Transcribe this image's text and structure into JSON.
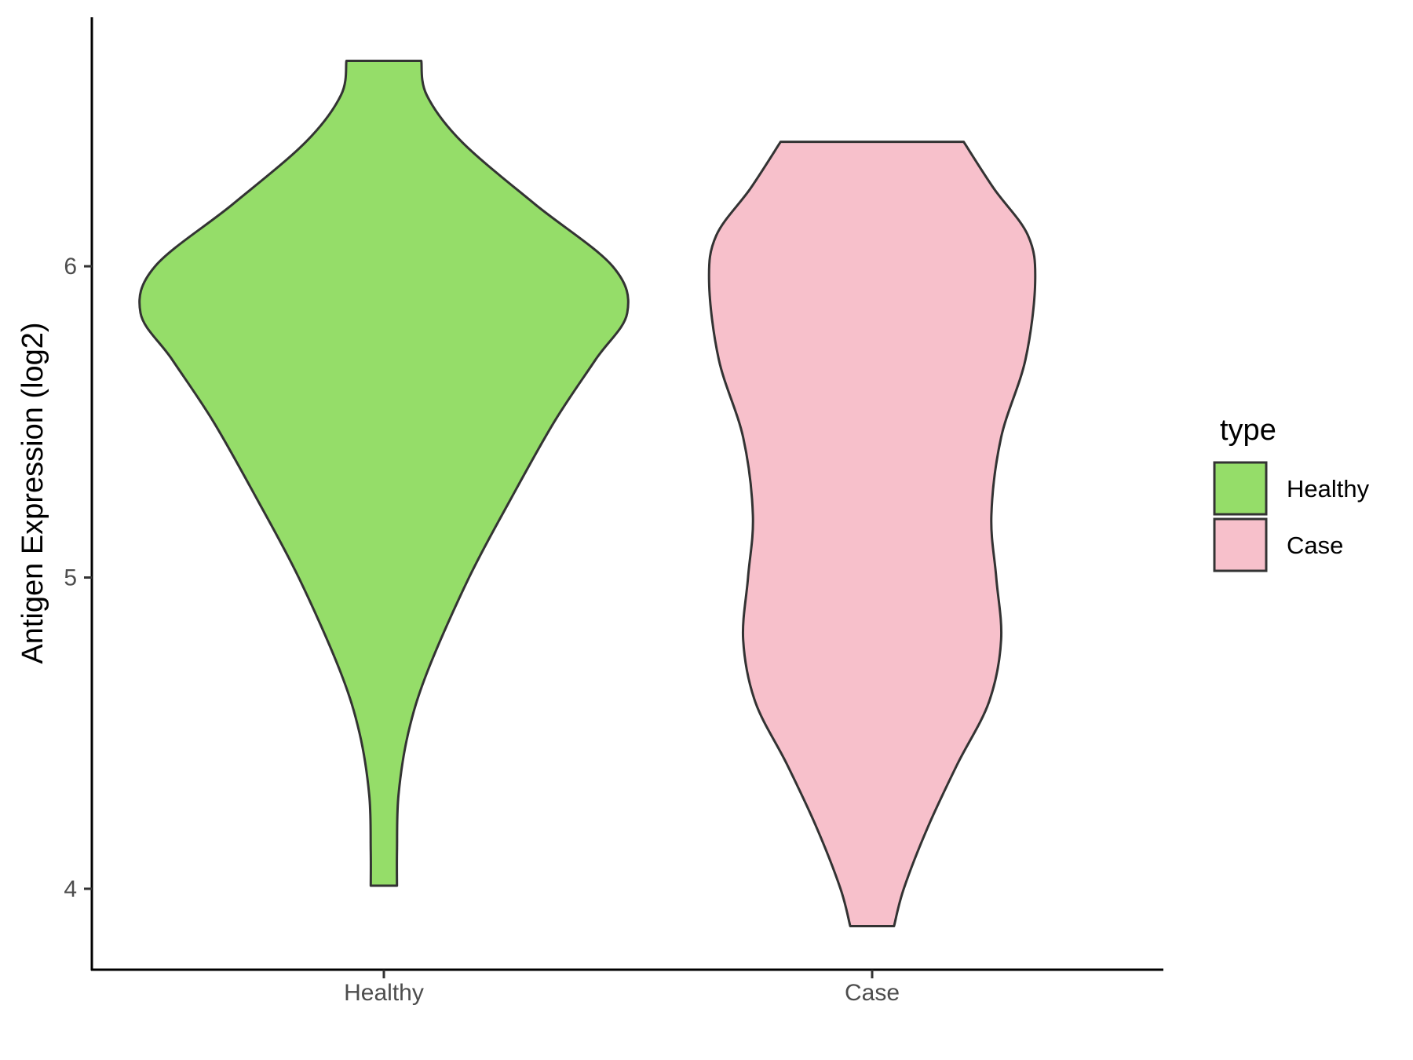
{
  "chart_data": {
    "type": "violin",
    "ylabel": "Antigen Expression (log2)",
    "xlabel": "",
    "categories": [
      "Healthy",
      "Case"
    ],
    "ylim": [
      3.74,
      6.8
    ],
    "yticks": [
      4,
      5,
      6
    ],
    "grid": false,
    "legend": {
      "title": "type",
      "placement": "right",
      "entries": [
        {
          "label": "Healthy",
          "color": "#95dd69"
        },
        {
          "label": "Case",
          "color": "#f7c0cb"
        }
      ]
    },
    "series": [
      {
        "category": "Healthy",
        "color": "#95dd69",
        "y_min": 4.01,
        "y_max": 6.66,
        "density_profile": [
          {
            "y": 4.01,
            "half_width": 0.027
          },
          {
            "y": 4.12,
            "half_width": 0.027
          },
          {
            "y": 4.3,
            "half_width": 0.03
          },
          {
            "y": 4.5,
            "half_width": 0.05
          },
          {
            "y": 4.7,
            "half_width": 0.09
          },
          {
            "y": 5.0,
            "half_width": 0.175
          },
          {
            "y": 5.25,
            "half_width": 0.26
          },
          {
            "y": 5.5,
            "half_width": 0.35
          },
          {
            "y": 5.7,
            "half_width": 0.435
          },
          {
            "y": 5.85,
            "half_width": 0.5
          },
          {
            "y": 6.0,
            "half_width": 0.47
          },
          {
            "y": 6.2,
            "half_width": 0.31
          },
          {
            "y": 6.4,
            "half_width": 0.16
          },
          {
            "y": 6.55,
            "half_width": 0.088
          },
          {
            "y": 6.66,
            "half_width": 0.077
          }
        ]
      },
      {
        "category": "Case",
        "color": "#f7c0cb",
        "y_min": 3.88,
        "y_max": 6.4,
        "density_profile": [
          {
            "y": 3.88,
            "half_width": 0.045
          },
          {
            "y": 4.0,
            "half_width": 0.065
          },
          {
            "y": 4.2,
            "half_width": 0.115
          },
          {
            "y": 4.4,
            "half_width": 0.175
          },
          {
            "y": 4.6,
            "half_width": 0.24
          },
          {
            "y": 4.8,
            "half_width": 0.265
          },
          {
            "y": 5.0,
            "half_width": 0.255
          },
          {
            "y": 5.2,
            "half_width": 0.245
          },
          {
            "y": 5.45,
            "half_width": 0.265
          },
          {
            "y": 5.7,
            "half_width": 0.315
          },
          {
            "y": 5.95,
            "half_width": 0.335
          },
          {
            "y": 6.1,
            "half_width": 0.32
          },
          {
            "y": 6.25,
            "half_width": 0.25
          },
          {
            "y": 6.4,
            "half_width": 0.188
          }
        ]
      }
    ]
  }
}
